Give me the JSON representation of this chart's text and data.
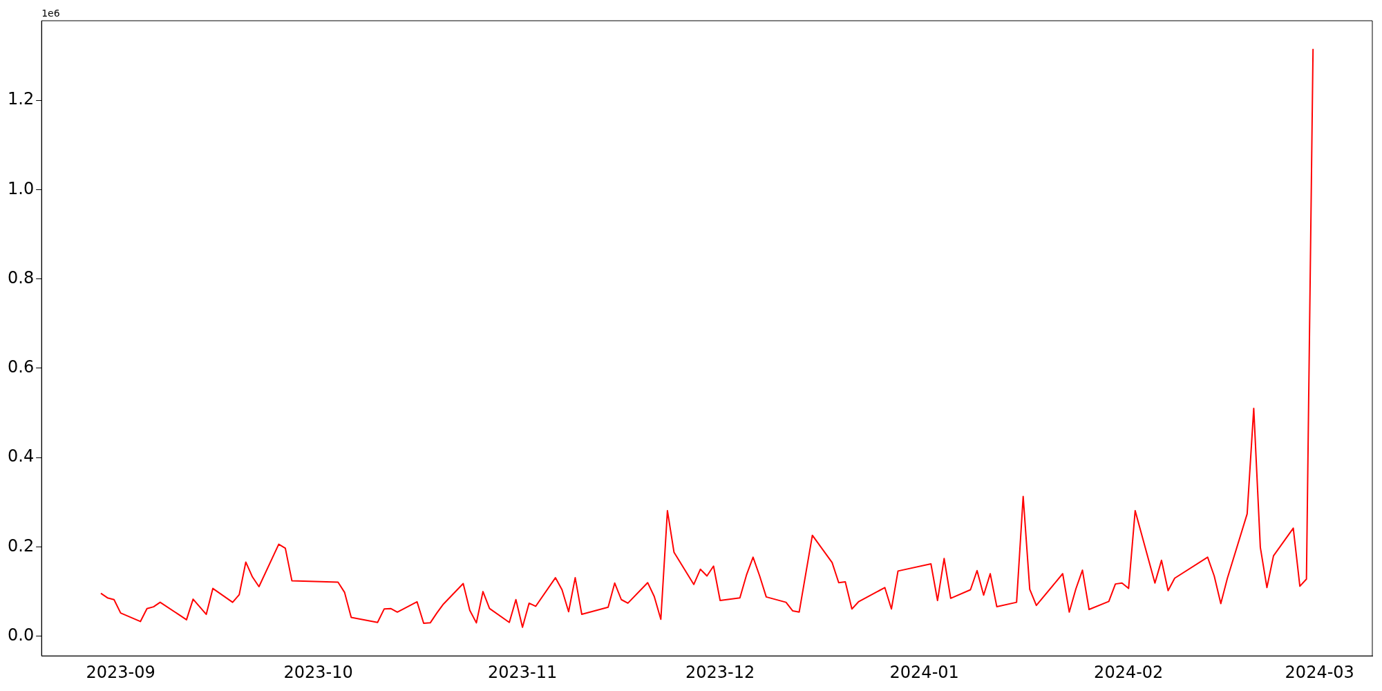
{
  "chart_data": {
    "type": "line",
    "annotations": [
      "1e6"
    ],
    "x": [
      "2023-08-29",
      "2023-08-30",
      "2023-08-31",
      "2023-09-01",
      "2023-09-04",
      "2023-09-05",
      "2023-09-06",
      "2023-09-07",
      "2023-09-11",
      "2023-09-12",
      "2023-09-14",
      "2023-09-15",
      "2023-09-18",
      "2023-09-19",
      "2023-09-20",
      "2023-09-21",
      "2023-09-22",
      "2023-09-25",
      "2023-09-26",
      "2023-09-27",
      "2023-10-04",
      "2023-10-05",
      "2023-10-06",
      "2023-10-10",
      "2023-10-11",
      "2023-10-12",
      "2023-10-13",
      "2023-10-16",
      "2023-10-17",
      "2023-10-18",
      "2023-10-19",
      "2023-10-20",
      "2023-10-23",
      "2023-10-24",
      "2023-10-25",
      "2023-10-26",
      "2023-10-27",
      "2023-10-30",
      "2023-10-31",
      "2023-11-01",
      "2023-11-02",
      "2023-11-03",
      "2023-11-06",
      "2023-11-07",
      "2023-11-08",
      "2023-11-09",
      "2023-11-10",
      "2023-11-14",
      "2023-11-15",
      "2023-11-16",
      "2023-11-17",
      "2023-11-20",
      "2023-11-21",
      "2023-11-22",
      "2023-11-23",
      "2023-11-24",
      "2023-11-27",
      "2023-11-28",
      "2023-11-29",
      "2023-11-30",
      "2023-12-01",
      "2023-12-04",
      "2023-12-05",
      "2023-12-06",
      "2023-12-07",
      "2023-12-08",
      "2023-12-11",
      "2023-12-12",
      "2023-12-13",
      "2023-12-15",
      "2023-12-18",
      "2023-12-19",
      "2023-12-20",
      "2023-12-21",
      "2023-12-22",
      "2023-12-26",
      "2023-12-27",
      "2023-12-28",
      "2024-01-02",
      "2024-01-03",
      "2024-01-04",
      "2024-01-05",
      "2024-01-08",
      "2024-01-09",
      "2024-01-10",
      "2024-01-11",
      "2024-01-12",
      "2024-01-15",
      "2024-01-16",
      "2024-01-17",
      "2024-01-18",
      "2024-01-22",
      "2024-01-23",
      "2024-01-24",
      "2024-01-25",
      "2024-01-26",
      "2024-01-29",
      "2024-01-30",
      "2024-01-31",
      "2024-02-01",
      "2024-02-02",
      "2024-02-05",
      "2024-02-06",
      "2024-02-07",
      "2024-02-08",
      "2024-02-13",
      "2024-02-14",
      "2024-02-15",
      "2024-02-16",
      "2024-02-19",
      "2024-02-20",
      "2024-02-21",
      "2024-02-22",
      "2024-02-23",
      "2024-02-26",
      "2024-02-27",
      "2024-02-28",
      "2024-02-29"
    ],
    "series": [
      {
        "color": "#ff0000",
        "values": [
          0.096,
          0.086,
          0.082,
          0.052,
          0.033,
          0.062,
          0.066,
          0.076,
          0.037,
          0.083,
          0.049,
          0.107,
          0.076,
          0.093,
          0.166,
          0.133,
          0.111,
          0.206,
          0.197,
          0.124,
          0.121,
          0.098,
          0.042,
          0.031,
          0.061,
          0.062,
          0.054,
          0.077,
          0.029,
          0.03,
          0.052,
          0.072,
          0.118,
          0.058,
          0.03,
          0.1,
          0.062,
          0.031,
          0.082,
          0.02,
          0.074,
          0.067,
          0.131,
          0.104,
          0.055,
          0.131,
          0.049,
          0.065,
          0.119,
          0.082,
          0.074,
          0.12,
          0.089,
          0.038,
          0.281,
          0.188,
          0.116,
          0.15,
          0.135,
          0.157,
          0.08,
          0.086,
          0.137,
          0.177,
          0.135,
          0.088,
          0.076,
          0.057,
          0.054,
          0.226,
          0.165,
          0.12,
          0.122,
          0.061,
          0.077,
          0.109,
          0.061,
          0.146,
          0.162,
          0.08,
          0.174,
          0.085,
          0.104,
          0.147,
          0.092,
          0.14,
          0.066,
          0.076,
          0.313,
          0.105,
          0.069,
          0.14,
          0.054,
          0.106,
          0.148,
          0.06,
          0.078,
          0.117,
          0.119,
          0.107,
          0.281,
          0.119,
          0.17,
          0.102,
          0.13,
          0.177,
          0.135,
          0.073,
          0.13,
          0.274,
          0.51,
          0.199,
          0.109,
          0.18,
          0.242,
          0.112,
          0.128,
          1.315
        ]
      }
    ],
    "xlim": [
      "2023-08-20",
      "2024-03-09"
    ],
    "xticks": [
      {
        "value": "2023-09-01",
        "label": "2023-09"
      },
      {
        "value": "2023-10-01",
        "label": "2023-10"
      },
      {
        "value": "2023-11-01",
        "label": "2023-11"
      },
      {
        "value": "2023-12-01",
        "label": "2023-12"
      },
      {
        "value": "2024-01-01",
        "label": "2024-01"
      },
      {
        "value": "2024-02-01",
        "label": "2024-02"
      },
      {
        "value": "2024-03-01",
        "label": "2024-03"
      }
    ],
    "ylim": [
      -0.044,
      1.378
    ],
    "yticks": [
      {
        "value": 0,
        "label": "0.0"
      },
      {
        "value": 0.2,
        "label": "0.2"
      },
      {
        "value": 0.4,
        "label": "0.4"
      },
      {
        "value": 0.6,
        "label": "0.6"
      },
      {
        "value": 0.8,
        "label": "0.8"
      },
      {
        "value": 1,
        "label": "1.0"
      },
      {
        "value": 1.2,
        "label": "1.2"
      }
    ],
    "grid": false,
    "legend": false,
    "marker": "none",
    "line_style": "solid"
  }
}
